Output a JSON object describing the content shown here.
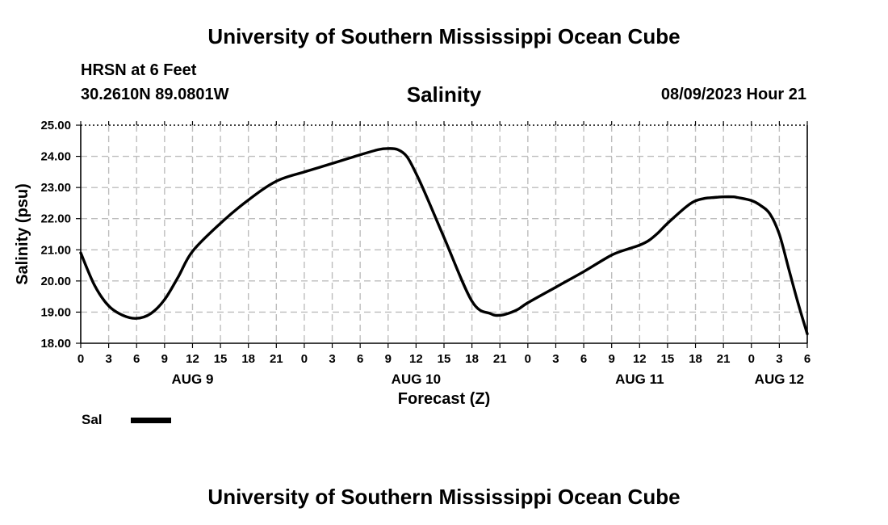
{
  "header": {
    "title": "University of Southern Mississippi Ocean Cube",
    "station": "HRSN at 6 Feet",
    "coords": "30.2610N  89.0801W",
    "datetime": "08/09/2023 Hour 21",
    "footer_title": "University of Southern Mississippi Ocean Cube"
  },
  "legend": {
    "label": "Sal",
    "color": "#000000"
  },
  "chart_data": {
    "type": "line",
    "title": "Salinity",
    "xlabel": "Forecast (Z)",
    "ylabel": "Salinity (psu)",
    "ylim": [
      18,
      25
    ],
    "xlim": [
      0,
      78
    ],
    "y_ticks": [
      "18.00",
      "19.00",
      "20.00",
      "21.00",
      "22.00",
      "23.00",
      "24.00",
      "25.00"
    ],
    "x_ticks": [
      "0",
      "3",
      "6",
      "9",
      "12",
      "15",
      "18",
      "21",
      "0",
      "3",
      "6",
      "9",
      "12",
      "15",
      "18",
      "21",
      "0",
      "3",
      "6",
      "9",
      "12",
      "15",
      "18",
      "21",
      "0",
      "3",
      "6"
    ],
    "day_labels": [
      {
        "label": "AUG 9",
        "hours_from_start": 12
      },
      {
        "label": "AUG 10",
        "hours_from_start": 36
      },
      {
        "label": "AUG 11",
        "hours_from_start": 60
      },
      {
        "label": "AUG 12",
        "hours_from_start": 75
      }
    ],
    "grid": true,
    "series": [
      {
        "name": "Sal",
        "color": "#000000",
        "x": [
          0,
          1.5,
          3,
          4.5,
          6,
          7.5,
          9,
          10.5,
          12,
          15,
          18,
          21,
          24,
          27,
          30,
          32,
          33,
          34,
          35,
          36,
          37,
          39,
          42,
          44,
          45,
          46,
          47,
          48,
          51,
          54,
          57,
          59,
          60,
          61,
          62,
          63,
          65,
          66,
          67,
          68,
          69,
          70,
          70.5,
          72,
          73,
          74,
          75,
          76,
          77,
          78
        ],
        "values": [
          20.9,
          19.85,
          19.2,
          18.9,
          18.8,
          18.95,
          19.4,
          20.15,
          20.95,
          21.85,
          22.6,
          23.2,
          23.5,
          23.77,
          24.05,
          24.22,
          24.25,
          24.22,
          24.0,
          23.45,
          22.8,
          21.4,
          19.35,
          18.95,
          18.9,
          18.97,
          19.1,
          19.3,
          19.8,
          20.3,
          20.83,
          21.05,
          21.15,
          21.3,
          21.55,
          21.85,
          22.38,
          22.57,
          22.65,
          22.68,
          22.7,
          22.7,
          22.68,
          22.58,
          22.42,
          22.15,
          21.5,
          20.4,
          19.3,
          18.3
        ]
      }
    ]
  }
}
